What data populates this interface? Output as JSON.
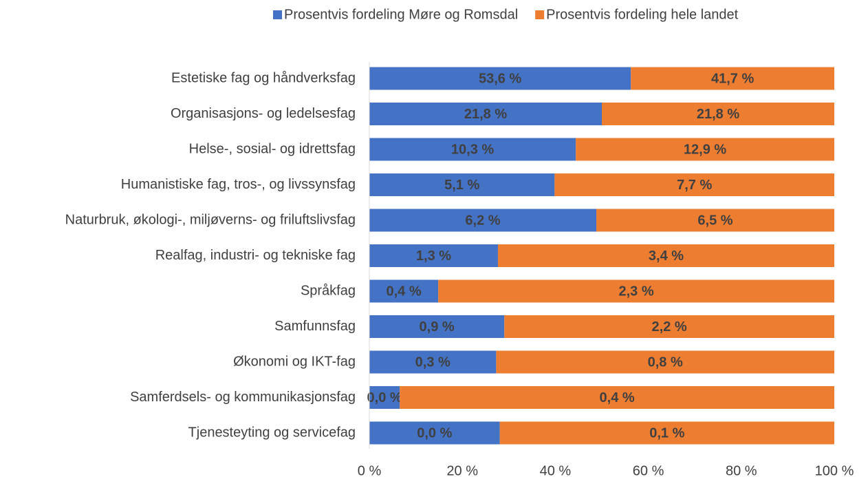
{
  "chart_data": {
    "type": "bar",
    "orientation": "horizontal",
    "stacking": "percent",
    "categories": [
      "Estetiske fag og håndverksfag",
      "Organisasjons- og ledelsesfag",
      "Helse-, sosial- og idrettsfag",
      "Humanistiske fag, tros-, og livssynsfag",
      "Naturbruk, økologi-, miljøverns- og friluftslivsfag",
      "Realfag, industri- og tekniske fag",
      "Språkfag",
      "Samfunnsfag",
      "Økonomi og IKT-fag",
      "Samferdsels- og kommunikasjonsfag",
      "Tjenesteyting og servicefag"
    ],
    "series": [
      {
        "name": "Prosentvis fordeling Møre og Romsdal",
        "color": "#4472c4",
        "values": [
          53.6,
          21.8,
          10.3,
          5.1,
          6.2,
          1.3,
          0.4,
          0.9,
          0.3,
          0.028,
          0.039
        ],
        "value_labels": [
          "53,6 %",
          "21,8 %",
          "10,3 %",
          "5,1 %",
          "6,2 %",
          "1,3 %",
          "0,4 %",
          "0,9 %",
          "0,3 %",
          "0,0 %",
          "0,0 %"
        ]
      },
      {
        "name": "Prosentvis fordeling hele landet",
        "color": "#ed7d31",
        "values": [
          41.7,
          21.8,
          12.9,
          7.7,
          6.5,
          3.4,
          2.3,
          2.2,
          0.8,
          0.4,
          0.1
        ],
        "value_labels": [
          "41,7 %",
          "21,8 %",
          "12,9 %",
          "7,7 %",
          "6,5 %",
          "3,4 %",
          "2,3 %",
          "2,2 %",
          "0,8 %",
          "0,4 %",
          "0,1 %"
        ]
      }
    ],
    "xlim": [
      0,
      100
    ],
    "xticks": [
      {
        "value": 0,
        "label": "0 %"
      },
      {
        "value": 20,
        "label": "20 %"
      },
      {
        "value": 40,
        "label": "40 %"
      },
      {
        "value": 60,
        "label": "60 %"
      },
      {
        "value": 80,
        "label": "80 %"
      },
      {
        "value": 100,
        "label": "100 %"
      }
    ],
    "legend": "top",
    "grid": false
  }
}
